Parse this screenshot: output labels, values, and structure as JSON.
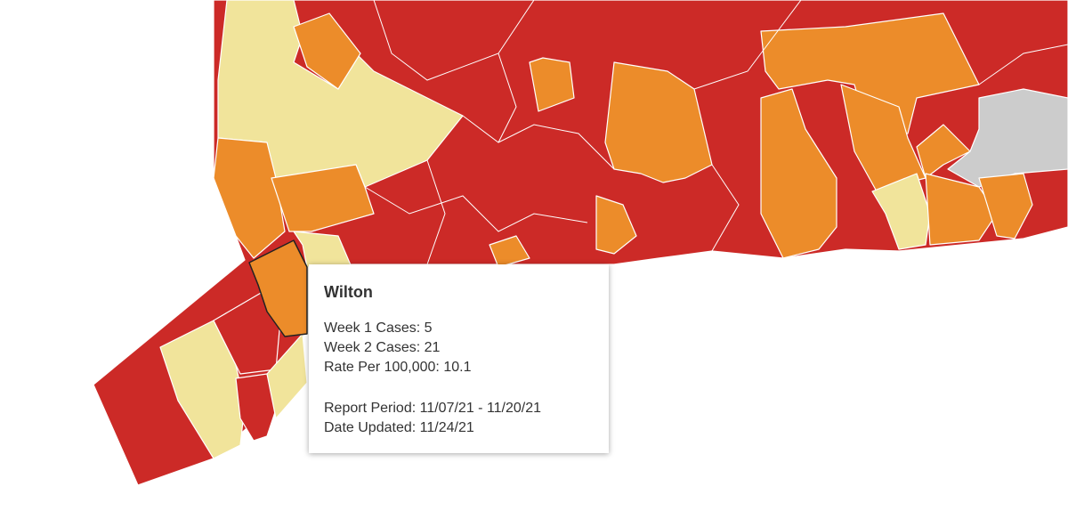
{
  "tooltip": {
    "title": "Wilton",
    "stats": [
      {
        "label": "Week 1 Cases:",
        "value": 5
      },
      {
        "label": "Week 2 Cases:",
        "value": 21
      },
      {
        "label": "Rate Per 100,000:",
        "value": 10.1
      }
    ],
    "report": [
      {
        "label": "Report Period:",
        "value": "11/07/21 - 11/20/21"
      },
      {
        "label": "Date Updated:",
        "value": "11/24/21"
      }
    ]
  }
}
